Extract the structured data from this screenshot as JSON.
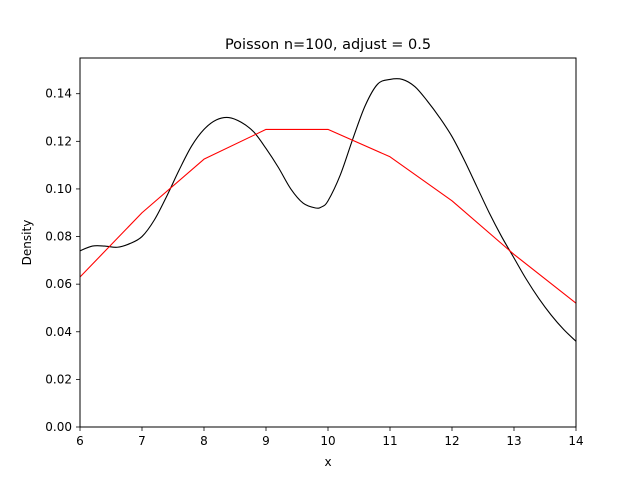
{
  "chart_data": {
    "type": "line",
    "title": "Poisson n=100, adjust = 0.5",
    "xlabel": "x",
    "ylabel": "Density",
    "xlim": [
      6,
      14
    ],
    "ylim": [
      0,
      0.155
    ],
    "xticks": [
      6,
      7,
      8,
      9,
      10,
      11,
      12,
      13,
      14
    ],
    "yticks": [
      0.0,
      0.02,
      0.04,
      0.06,
      0.08,
      0.1,
      0.12,
      0.14
    ],
    "ytick_labels": [
      "0.00",
      "0.02",
      "0.04",
      "0.06",
      "0.08",
      "0.10",
      "0.12",
      "0.14"
    ],
    "grid": false,
    "legend": "none",
    "series": [
      {
        "color": "#000000",
        "smooth": true,
        "x": [
          6.0,
          6.2,
          6.4,
          6.6,
          6.8,
          7.0,
          7.2,
          7.4,
          7.6,
          7.8,
          8.0,
          8.2,
          8.4,
          8.6,
          8.8,
          9.0,
          9.2,
          9.4,
          9.6,
          9.8,
          9.9,
          10.0,
          10.2,
          10.4,
          10.6,
          10.8,
          11.0,
          11.2,
          11.4,
          11.6,
          11.8,
          12.0,
          12.2,
          12.4,
          12.6,
          12.8,
          13.0,
          13.2,
          13.4,
          13.6,
          13.8,
          14.0
        ],
        "y": [
          0.074,
          0.076,
          0.076,
          0.0755,
          0.077,
          0.08,
          0.087,
          0.097,
          0.108,
          0.118,
          0.125,
          0.129,
          0.13,
          0.128,
          0.124,
          0.117,
          0.109,
          0.1,
          0.094,
          0.092,
          0.0925,
          0.095,
          0.106,
          0.121,
          0.135,
          0.144,
          0.146,
          0.146,
          0.143,
          0.137,
          0.13,
          0.122,
          0.112,
          0.101,
          0.09,
          0.08,
          0.071,
          0.062,
          0.054,
          0.047,
          0.041,
          0.036
        ]
      },
      {
        "color": "#ff0000",
        "smooth": false,
        "x": [
          6,
          7,
          8,
          9,
          10,
          11,
          12,
          13,
          14
        ],
        "y": [
          0.063,
          0.09,
          0.1125,
          0.125,
          0.125,
          0.1135,
          0.095,
          0.0725,
          0.052
        ]
      }
    ]
  }
}
